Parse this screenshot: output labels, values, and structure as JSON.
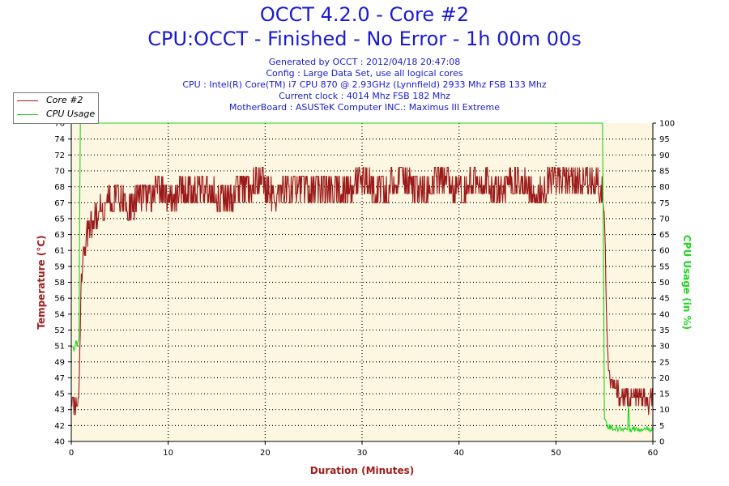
{
  "header": {
    "title": "OCCT 4.2.0 - Core #2",
    "subtitle": "CPU:OCCT - Finished - No Error - 1h 00m 00s",
    "info_lines": [
      "Generated by OCCT : 2012/04/18 20:47:08",
      "Config : Large Data Set, use all logical cores",
      "CPU : Intel(R) Core(TM) i7 CPU 870 @ 2.93GHz (Lynnfield) 2933 Mhz FSB 133 Mhz",
      "Current clock : 4014 Mhz FSB 182 Mhz",
      "MotherBoard : ASUSTeK Computer INC.: Maximus III Extreme"
    ]
  },
  "legend": {
    "items": [
      {
        "label": "Core #2",
        "color": "#a01c1c"
      },
      {
        "label": "CPU Usage",
        "color": "#22d422"
      }
    ]
  },
  "colors": {
    "temp": "#9b1a1a",
    "usage": "#1ed41e",
    "plot_bg": "#fdf6e0",
    "axis_title_left": "#a01c1c",
    "axis_title_right": "#22d422",
    "axis_title_bottom": "#a01c1c",
    "text_blue": "#1a1ad2"
  },
  "chart_data": {
    "type": "line",
    "title": "OCCT 4.2.0 - Core #2",
    "xlabel": "Duration (Minutes)",
    "ylabel": "Temperature (°C)",
    "y2label": "CPU Usage (in %)",
    "xlim": [
      0,
      60
    ],
    "ylim": [
      40,
      76
    ],
    "y2lim": [
      0,
      100
    ],
    "x_ticks": [
      0,
      10,
      20,
      30,
      40,
      50,
      60
    ],
    "y_ticks": [
      40,
      42,
      43,
      45,
      47,
      49,
      51,
      52,
      54,
      56,
      58,
      59,
      61,
      63,
      65,
      67,
      68,
      70,
      72,
      74,
      76
    ],
    "y2_ticks": [
      0,
      5,
      10,
      15,
      20,
      25,
      30,
      35,
      40,
      45,
      50,
      55,
      60,
      65,
      70,
      75,
      80,
      85,
      90,
      95,
      100
    ],
    "grid": true,
    "series": [
      {
        "name": "Core #2",
        "axis": "left",
        "x": [
          0,
          0.2,
          0.4,
          0.6,
          0.8,
          1.0,
          1.2,
          1.5,
          2.0,
          2.5,
          3.0,
          4.0,
          5.0,
          6.0,
          7.0,
          8.0,
          9.0,
          10.0,
          12.0,
          14.0,
          16.0,
          18.0,
          19.5,
          21.0,
          22.0,
          24.0,
          26.0,
          28.0,
          30.0,
          32.0,
          34.0,
          36.0,
          38.0,
          40.0,
          42.0,
          44.0,
          46.0,
          48.0,
          50.0,
          52.0,
          54.0,
          54.8,
          55.0,
          55.3,
          55.6,
          56.0,
          57.0,
          58.0,
          59.0,
          59.5,
          60.0
        ],
        "values": [
          45,
          44,
          43,
          44,
          45,
          58,
          61,
          62,
          64,
          65,
          66,
          67,
          67,
          66,
          67,
          67,
          68,
          67,
          68,
          68,
          67,
          68,
          69,
          67,
          68,
          68,
          68,
          68,
          69,
          68,
          69,
          68,
          69,
          68,
          69,
          68,
          69,
          68,
          69,
          69,
          69,
          68,
          66,
          50,
          47,
          46,
          45,
          45,
          45,
          44,
          45
        ]
      },
      {
        "name": "CPU Usage",
        "axis": "right",
        "x": [
          0,
          0.1,
          0.3,
          0.5,
          0.7,
          0.8,
          0.85,
          0.9,
          5,
          10,
          20,
          30,
          40,
          50,
          54.8,
          54.9,
          55.0,
          55.3,
          56.0,
          57.0,
          57.4,
          57.5,
          57.6,
          58.0,
          59.0,
          60.0
        ],
        "values": [
          30,
          30,
          29,
          31,
          30,
          33,
          60,
          100,
          100,
          100,
          100,
          100,
          100,
          100,
          100,
          60,
          7,
          5,
          4,
          4,
          4,
          13,
          4,
          4,
          4,
          4
        ]
      }
    ]
  }
}
